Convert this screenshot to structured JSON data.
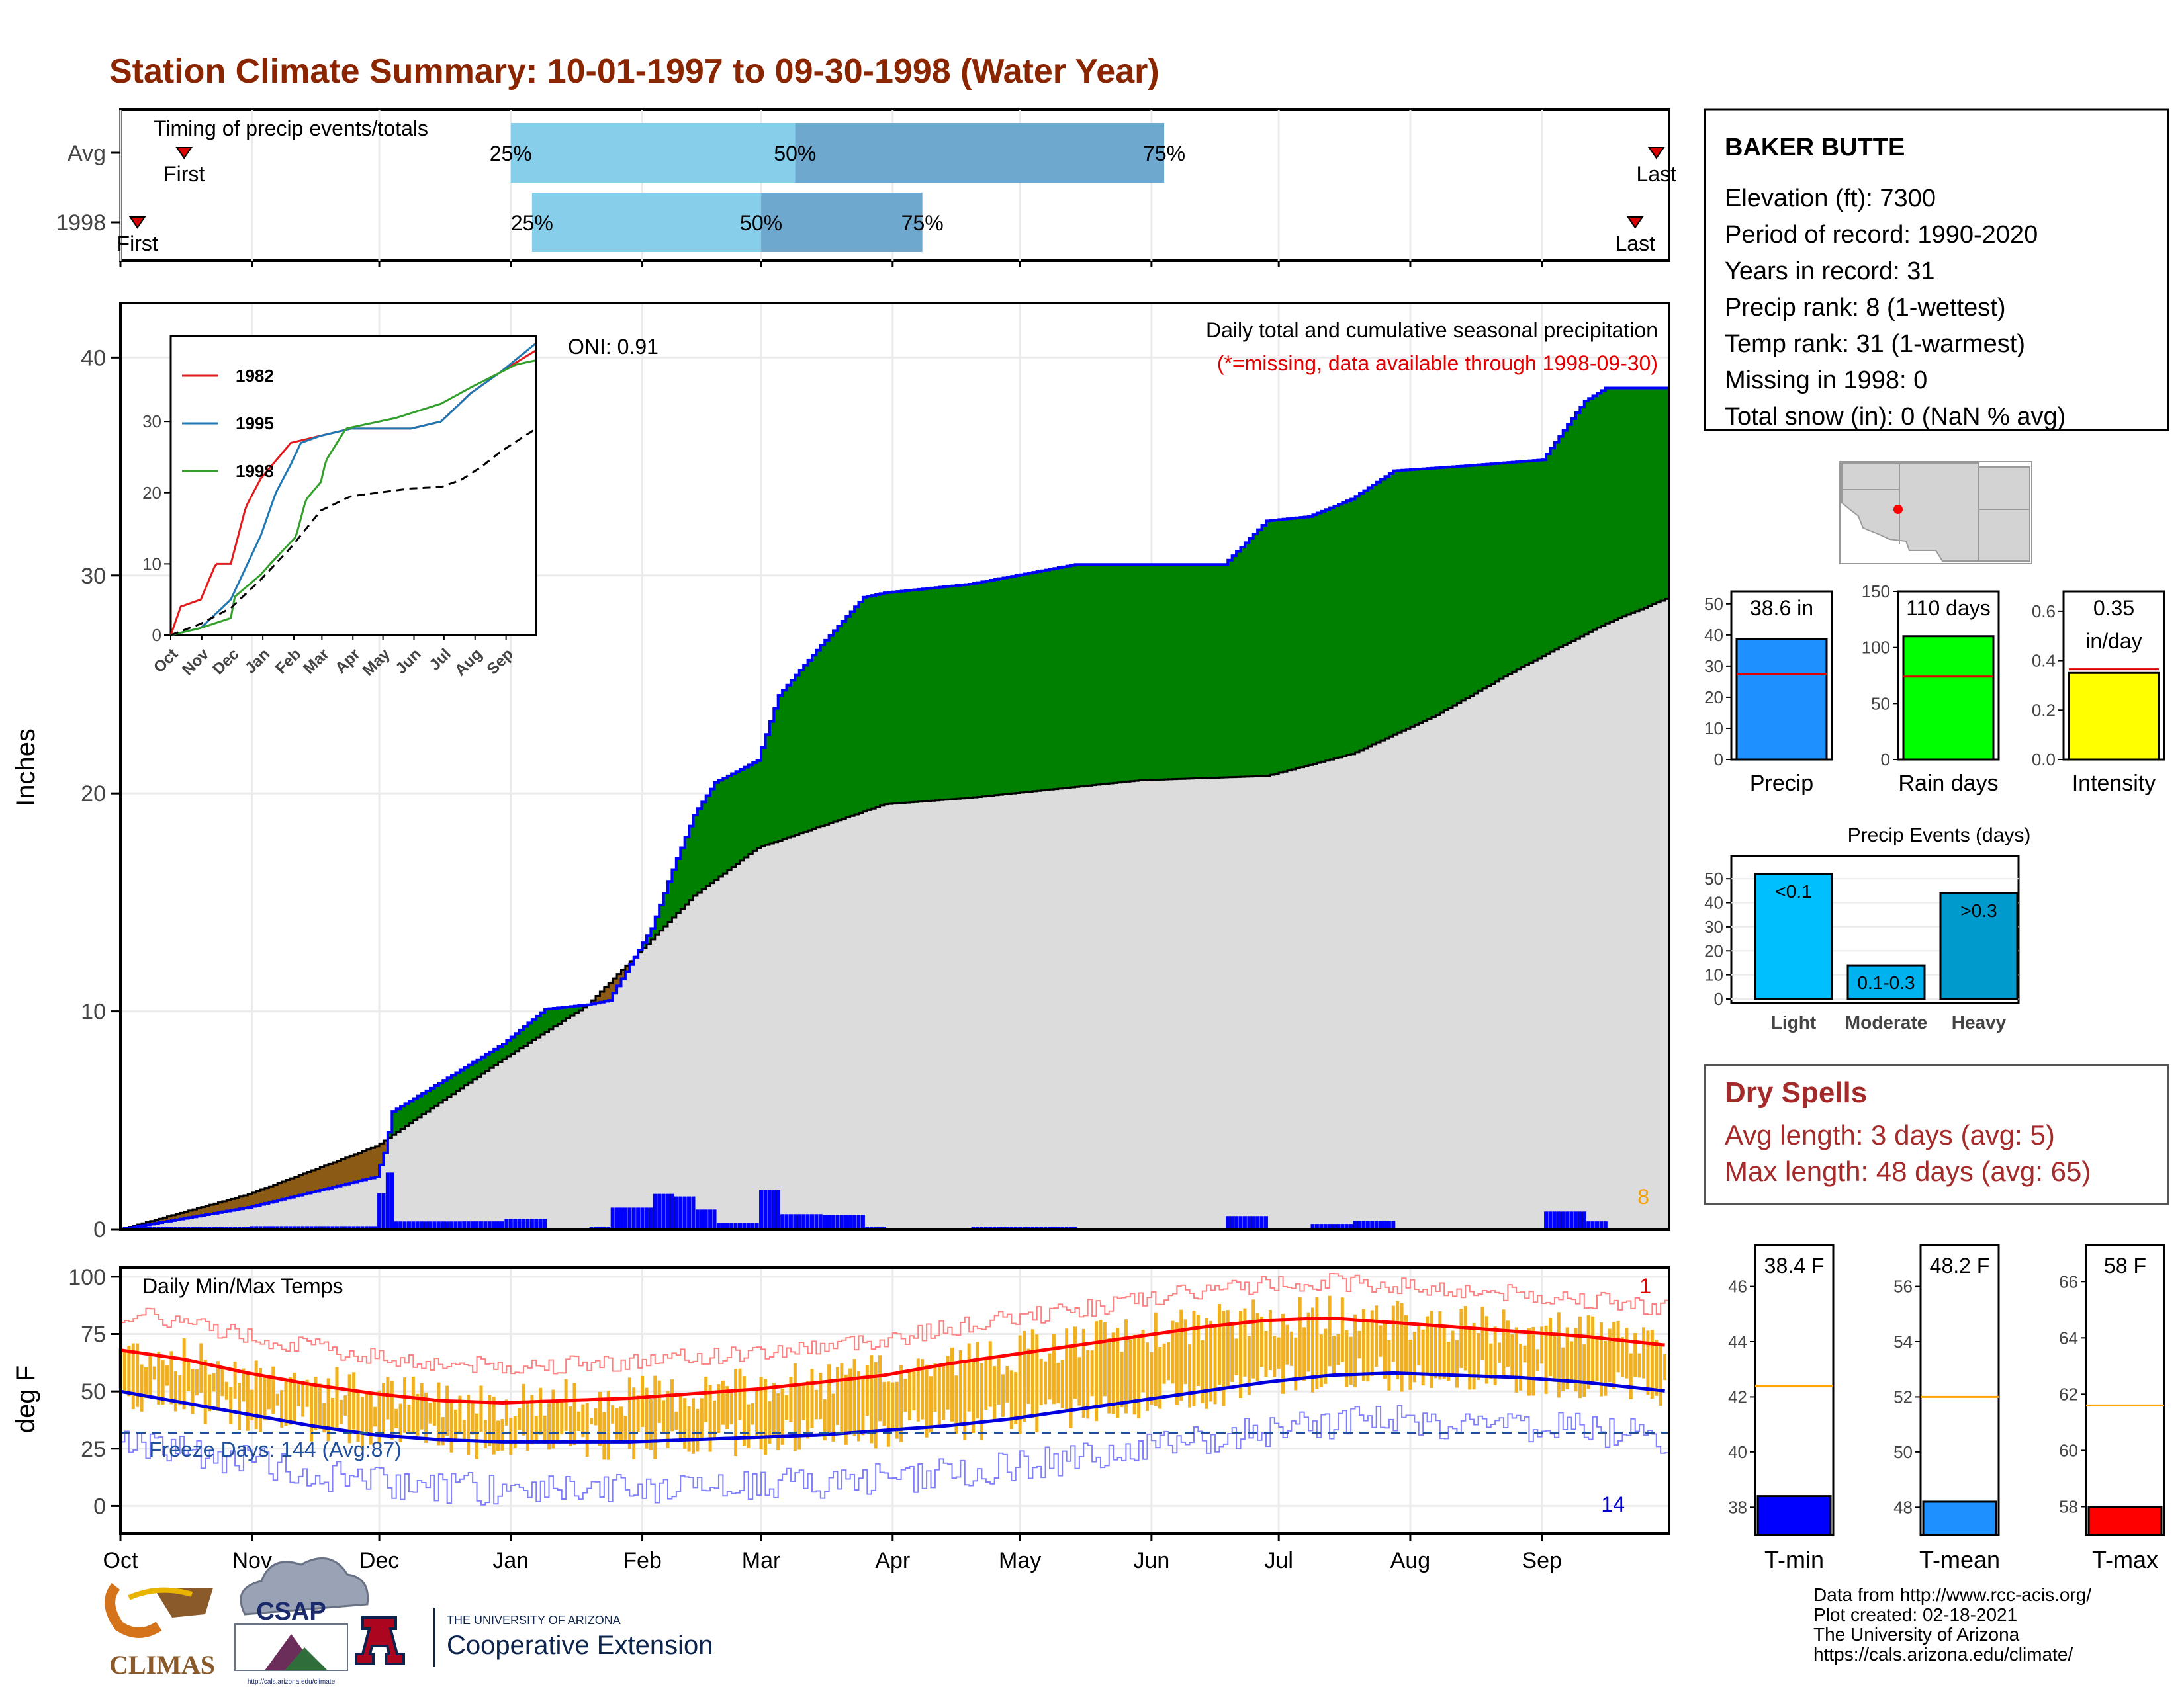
{
  "page": {
    "title": "Station Climate Summary: 10-01-1997 to 09-30-1998 (Water Year)",
    "title_color": "#8b2500"
  },
  "timing_panel": {
    "heading": "Timing of precip events/totals",
    "rows": [
      {
        "label": "Avg",
        "first_day": 15,
        "last_day": 362,
        "q25": 92,
        "q50": 159,
        "q75": 246
      },
      {
        "label": "1998",
        "first_day": 4,
        "last_day": 357,
        "q25": 97,
        "q50": 151,
        "q75": 189
      }
    ],
    "labels": {
      "q25": "25%",
      "q50": "50%",
      "q75": "75%",
      "first": "First",
      "last": "Last"
    },
    "colors": {
      "light": "#87ceeb",
      "dark": "#6fa8cf",
      "marker": "#dd0000"
    }
  },
  "precip_panel": {
    "title": "Daily total and cumulative seasonal precipitation",
    "note": "(*=missing, data available through 1998-09-30)",
    "oni": "ONI: 0.91",
    "ylabel": "Inches",
    "corner_count": "8",
    "yticks": [
      0,
      10,
      20,
      30,
      40
    ],
    "ylim": [
      0,
      42.5
    ]
  },
  "temp_panel": {
    "title": "Daily Min/Max Temps",
    "ylabel": "deg F",
    "freeze_label": "Freeze Days: 144 (Avg:87)",
    "freeze_line": 32,
    "record_high_count": "1",
    "record_low_count": "14",
    "yticks": [
      0,
      25,
      50,
      75,
      100
    ],
    "ylim": [
      -12,
      104
    ]
  },
  "months": [
    "Oct",
    "Nov",
    "Dec",
    "Jan",
    "Feb",
    "Mar",
    "Apr",
    "May",
    "Jun",
    "Jul",
    "Aug",
    "Sep"
  ],
  "inset": {
    "legend": [
      "1982",
      "1995",
      "1998"
    ],
    "colors": [
      "#e31a1c",
      "#1f78b4",
      "#33a02c"
    ],
    "yticks": [
      0,
      10,
      20,
      30
    ],
    "months": [
      "Oct",
      "Nov",
      "Dec",
      "Jan",
      "Feb",
      "Mar",
      "Apr",
      "May",
      "Jun",
      "Jul",
      "Aug",
      "Sep"
    ]
  },
  "station": {
    "name": "BAKER BUTTE",
    "lines": [
      "Elevation (ft): 7300",
      "Period of record: 1990-2020",
      "Years in record: 31",
      "Precip rank: 8 (1-wettest)",
      "Temp rank: 31 (1-warmest)",
      "Missing in 1998: 0",
      "Total snow (in): 0 (NaN % avg)"
    ]
  },
  "mini_bars": [
    {
      "label": "Precip",
      "value": 38.6,
      "avg": 27.5,
      "top_text": [
        "38.6 in"
      ],
      "color": "#1e90ff",
      "yticks": [
        0,
        10,
        20,
        30,
        40,
        50
      ],
      "ymax": 54
    },
    {
      "label": "Rain days",
      "value": 110,
      "avg": 74,
      "top_text": [
        "110 days"
      ],
      "color": "#00ff00",
      "yticks": [
        0,
        50,
        100,
        150
      ],
      "ymax": 150
    },
    {
      "label": "Intensity",
      "value": 0.35,
      "avg": 0.365,
      "top_text": [
        "0.35",
        "in/day"
      ],
      "color": "#ffff00",
      "yticks": [
        0.0,
        0.2,
        0.4,
        0.6
      ],
      "ymax": 0.68
    }
  ],
  "events": {
    "title": "Precip Events (days)",
    "categories": [
      "Light",
      "Moderate",
      "Heavy"
    ],
    "values": [
      52,
      14,
      44
    ],
    "bar_labels": [
      "<0.1",
      "0.1-0.3",
      ">0.3"
    ],
    "colors": [
      "#00bfff",
      "#00b2ee",
      "#009acd"
    ],
    "yticks": [
      0,
      10,
      20,
      30,
      40,
      50
    ]
  },
  "dry_spells": {
    "title": "Dry Spells",
    "avg_line": "Avg length: 3 days (avg: 5)",
    "max_line": "Max length: 48 days (avg: 65)",
    "color": "#a52a2a"
  },
  "temp_bars": [
    {
      "label": "T-min",
      "value": 38.4,
      "avg": 42.4,
      "top_text": "38.4 F",
      "color": "#0000ff",
      "yticks": [
        38,
        40,
        42,
        44,
        46
      ],
      "ymin": 37,
      "ymax": 47.5
    },
    {
      "label": "T-mean",
      "value": 48.2,
      "avg": 52.0,
      "top_text": "48.2 F",
      "color": "#1e90ff",
      "yticks": [
        48,
        50,
        52,
        54,
        56
      ],
      "ymin": 47,
      "ymax": 57.5
    },
    {
      "label": "T-max",
      "value": 58,
      "avg": 61.6,
      "top_text": "58 F",
      "color": "#ff0000",
      "yticks": [
        58,
        60,
        62,
        64,
        66
      ],
      "ymin": 57,
      "ymax": 67.3
    }
  ],
  "footer": {
    "lines": [
      "Data from http://www.rcc-acis.org/",
      "Plot created: 02-18-2021",
      "The University of Arizona",
      "https://cals.arizona.edu/climate/"
    ],
    "climas": "CLIMAS",
    "csap": "CSAP",
    "csap_url": "http://cals.arizona.edu/climate",
    "ua_small": "THE UNIVERSITY OF ARIZONA",
    "ua_big": "Cooperative Extension"
  },
  "chart_data": [
    {
      "type": "area",
      "title": "Daily total and cumulative seasonal precipitation",
      "ylabel": "Inches",
      "ylim": [
        0,
        42.5
      ],
      "cumulative_1998": {
        "x_day": [
          0,
          30,
          60,
          62,
          64,
          80,
          90,
          100,
          110,
          115,
          125,
          130,
          135,
          140,
          150,
          155,
          165,
          175,
          180,
          190,
          200,
          225,
          240,
          260,
          270,
          280,
          290,
          300,
          315,
          335,
          345,
          350,
          365
        ],
        "y": [
          0,
          1.0,
          2.4,
          3.5,
          5.4,
          7.3,
          8.5,
          10.1,
          10.3,
          10.5,
          13.8,
          16.5,
          19.0,
          20.5,
          21.5,
          24.5,
          26.8,
          29.0,
          29.2,
          29.4,
          29.6,
          30.5,
          30.5,
          30.5,
          32.5,
          32.7,
          33.5,
          34.8,
          35.0,
          35.3,
          38.0,
          38.6,
          38.6
        ]
      },
      "average_cumulative": {
        "x_day": [
          0,
          30,
          60,
          90,
          110,
          120,
          135,
          150,
          180,
          200,
          240,
          270,
          290,
          310,
          330,
          350,
          365
        ],
        "y": [
          0,
          1.6,
          3.8,
          7.8,
          10.3,
          12.3,
          15.3,
          17.5,
          19.5,
          19.8,
          20.6,
          20.8,
          21.8,
          23.6,
          25.8,
          27.8,
          29.0
        ]
      },
      "series_colors": {
        "above_avg": "#008000",
        "below_avg": "#8b5a14",
        "average": "#dcdcdc",
        "observed": "#0000ff"
      }
    },
    {
      "type": "line",
      "title": "Daily Min/Max Temps",
      "ylabel": "deg F",
      "ylim": [
        -12,
        104
      ],
      "avg_max": {
        "x_day": [
          0,
          15,
          30,
          45,
          60,
          75,
          90,
          105,
          120,
          135,
          150,
          165,
          180,
          195,
          210,
          225,
          240,
          255,
          270,
          285,
          300,
          315,
          330,
          345,
          365
        ],
        "y": [
          68,
          64,
          58,
          53,
          49,
          46,
          45,
          46,
          47,
          49,
          51,
          54,
          57,
          62,
          66,
          70,
          74,
          78,
          81,
          82,
          80,
          78,
          76,
          74,
          70
        ]
      },
      "avg_min": {
        "x_day": [
          0,
          15,
          30,
          45,
          60,
          75,
          90,
          105,
          120,
          135,
          150,
          165,
          180,
          195,
          210,
          225,
          240,
          255,
          270,
          285,
          300,
          315,
          330,
          345,
          365
        ],
        "y": [
          50,
          45,
          40,
          35,
          31,
          29,
          28,
          28,
          28,
          29,
          30,
          31,
          33,
          35,
          38,
          42,
          46,
          50,
          54,
          57,
          58,
          57,
          56,
          54,
          50
        ]
      },
      "freeze_threshold": 32
    },
    {
      "type": "line",
      "title": "",
      "series": [
        {
          "name": "1982",
          "x_day": [
            0,
            10,
            30,
            45,
            60,
            75,
            90,
            120,
            150,
            180,
            200,
            225,
            240,
            270,
            300,
            330,
            365
          ],
          "y": [
            0,
            4,
            5,
            10,
            10,
            18,
            22,
            27,
            28,
            29,
            29,
            29,
            29,
            30,
            34,
            37,
            40
          ]
        },
        {
          "name": "1995",
          "x_day": [
            0,
            30,
            60,
            90,
            105,
            120,
            130,
            150,
            180,
            225,
            240,
            270,
            300,
            330,
            365
          ],
          "y": [
            0,
            1,
            5,
            14,
            20,
            24,
            27,
            28,
            29,
            29,
            29,
            30,
            34,
            37,
            41
          ]
        },
        {
          "name": "1998",
          "x_day": [
            0,
            30,
            60,
            64,
            90,
            100,
            125,
            135,
            150,
            155,
            175,
            225,
            270,
            300,
            345,
            365
          ],
          "y": [
            0,
            1,
            2.4,
            5.4,
            8.5,
            10.1,
            13.8,
            19,
            21.5,
            24.5,
            29,
            30.5,
            32.5,
            34.8,
            38,
            38.6
          ]
        },
        {
          "name": "Average",
          "x_day": [
            0,
            30,
            60,
            90,
            120,
            150,
            180,
            240,
            270,
            290,
            310,
            330,
            365
          ],
          "y": [
            0,
            1.6,
            3.8,
            7.8,
            12.3,
            17.5,
            19.5,
            20.6,
            20.8,
            21.8,
            23.6,
            25.8,
            29
          ]
        }
      ],
      "ylim": [
        0,
        42
      ]
    }
  ]
}
